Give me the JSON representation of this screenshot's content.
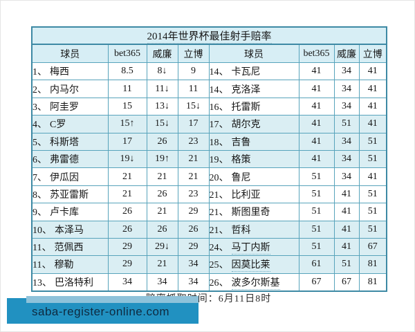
{
  "table": {
    "title": "2014年世界杯最佳射手赔率",
    "headers": [
      "球员",
      "bet365",
      "威廉",
      "立博",
      "球员",
      "bet365",
      "威廉",
      "立博"
    ],
    "rows": [
      {
        "left": {
          "rank": "1、",
          "name": "梅西",
          "odds": [
            {
              "v": "8.5"
            },
            {
              "v": "8↓"
            },
            {
              "v": "9"
            }
          ]
        },
        "right": {
          "rank": "14、",
          "name": "卡瓦尼",
          "odds": [
            {
              "v": "41"
            },
            {
              "v": "34"
            },
            {
              "v": "41"
            }
          ]
        }
      },
      {
        "left": {
          "rank": "2、",
          "name": "内马尔",
          "odds": [
            {
              "v": "11"
            },
            {
              "v": "11↓"
            },
            {
              "v": "11"
            }
          ]
        },
        "right": {
          "rank": "14、",
          "name": "克洛泽",
          "odds": [
            {
              "v": "41"
            },
            {
              "v": "34"
            },
            {
              "v": "41"
            }
          ]
        }
      },
      {
        "left": {
          "rank": "3、",
          "name": "阿圭罗",
          "odds": [
            {
              "v": "15"
            },
            {
              "v": "13↓"
            },
            {
              "v": "15↓",
              "b": true
            }
          ]
        },
        "right": {
          "rank": "16、",
          "name": "托雷斯",
          "odds": [
            {
              "v": "41"
            },
            {
              "v": "34"
            },
            {
              "v": "41"
            }
          ]
        }
      },
      {
        "left": {
          "rank": "4、",
          "name": "C罗",
          "odds": [
            {
              "v": "15↑",
              "b": true
            },
            {
              "v": "15↓"
            },
            {
              "v": "17"
            }
          ]
        },
        "right": {
          "rank": "17、",
          "name": "胡尔克",
          "odds": [
            {
              "v": "41"
            },
            {
              "v": "51"
            },
            {
              "v": "41"
            }
          ]
        }
      },
      {
        "left": {
          "rank": "5、",
          "name": "科斯塔",
          "odds": [
            {
              "v": "17"
            },
            {
              "v": "26"
            },
            {
              "v": "23"
            }
          ]
        },
        "right": {
          "rank": "18、",
          "name": "吉鲁",
          "odds": [
            {
              "v": "41"
            },
            {
              "v": "34"
            },
            {
              "v": "51"
            }
          ]
        }
      },
      {
        "left": {
          "rank": "6、",
          "name": "弗雷德",
          "odds": [
            {
              "v": "19↓"
            },
            {
              "v": "19↑"
            },
            {
              "v": "21"
            }
          ]
        },
        "right": {
          "rank": "19、",
          "name": "格策",
          "odds": [
            {
              "v": "41"
            },
            {
              "v": "34"
            },
            {
              "v": "51"
            }
          ]
        }
      },
      {
        "left": {
          "rank": "7、",
          "name": "伊瓜因",
          "odds": [
            {
              "v": "21"
            },
            {
              "v": "21"
            },
            {
              "v": "21"
            }
          ]
        },
        "right": {
          "rank": "20、",
          "name": "鲁尼",
          "odds": [
            {
              "v": "51"
            },
            {
              "v": "34"
            },
            {
              "v": "41"
            }
          ]
        }
      },
      {
        "left": {
          "rank": "8、",
          "name": "苏亚雷斯",
          "odds": [
            {
              "v": "21"
            },
            {
              "v": "26"
            },
            {
              "v": "23"
            }
          ]
        },
        "right": {
          "rank": "21、",
          "name": "比利亚",
          "odds": [
            {
              "v": "51"
            },
            {
              "v": "41"
            },
            {
              "v": "51"
            }
          ]
        }
      },
      {
        "left": {
          "rank": "9、",
          "name": "卢卡库",
          "odds": [
            {
              "v": "26"
            },
            {
              "v": "21"
            },
            {
              "v": "29"
            }
          ]
        },
        "right": {
          "rank": "21、",
          "name": "斯图里奇",
          "odds": [
            {
              "v": "51"
            },
            {
              "v": "41"
            },
            {
              "v": "51"
            }
          ]
        }
      },
      {
        "left": {
          "rank": "10、",
          "name": "本泽马",
          "odds": [
            {
              "v": "26"
            },
            {
              "v": "26"
            },
            {
              "v": "26"
            }
          ]
        },
        "right": {
          "rank": "21、",
          "name": "哲科",
          "odds": [
            {
              "v": "51"
            },
            {
              "v": "41"
            },
            {
              "v": "51"
            }
          ]
        }
      },
      {
        "left": {
          "rank": "11、",
          "name": "范佩西",
          "odds": [
            {
              "v": "29"
            },
            {
              "v": "29↓"
            },
            {
              "v": "29"
            }
          ]
        },
        "right": {
          "rank": "24、",
          "name": "马丁内斯",
          "u": true,
          "odds": [
            {
              "v": "51"
            },
            {
              "v": "41"
            },
            {
              "v": "67"
            }
          ]
        }
      },
      {
        "left": {
          "rank": "11、",
          "name": "穆勒",
          "odds": [
            {
              "v": "29"
            },
            {
              "v": "21"
            },
            {
              "v": "34"
            }
          ]
        },
        "right": {
          "rank": "25、",
          "name": "因莫比莱",
          "u": true,
          "odds": [
            {
              "v": "61"
            },
            {
              "v": "51"
            },
            {
              "v": "81"
            }
          ]
        }
      },
      {
        "left": {
          "rank": "13、",
          "name": "巴洛特利",
          "odds": [
            {
              "v": "34"
            },
            {
              "v": "34"
            },
            {
              "v": "34"
            }
          ]
        },
        "right": {
          "rank": "26、",
          "name": "波多尔斯基",
          "u": true,
          "odds": [
            {
              "v": "67"
            },
            {
              "v": "67"
            },
            {
              "v": "81"
            }
          ]
        }
      }
    ]
  },
  "footer": {
    "note": "赔率抓取时间：6月11日8时"
  },
  "banner": {
    "url": "saba-register-online.com"
  },
  "colors": {
    "border": "#57a3bb",
    "outer_border": "#3d89a4",
    "header_bg": "#d7eef5",
    "tint_bg": "#daeef3",
    "banner_blue": "#2191c1",
    "banner_strip": "#8ec2da",
    "banner_text": "#0e2a40"
  }
}
